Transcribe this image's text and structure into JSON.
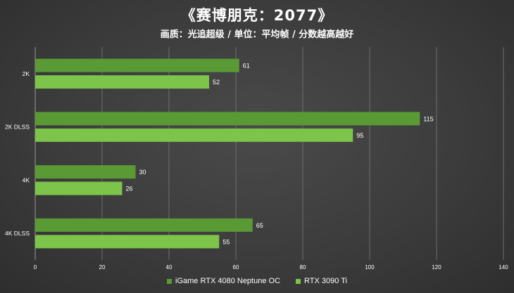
{
  "chart_data": {
    "type": "bar",
    "orientation": "horizontal",
    "title": "《赛博朋克：2077》",
    "subtitle": "画质：光追超级 / 单位：平均帧 / 分数越高越好",
    "categories": [
      "2K",
      "2K DLSS",
      "4K",
      "4K DLSS"
    ],
    "series": [
      {
        "name": "iGame RTX 4080 Neptune OC",
        "color": "#5a9a35",
        "values": [
          61,
          115,
          30,
          65
        ]
      },
      {
        "name": "RTX 3090 Ti",
        "color": "#7cc44a",
        "values": [
          52,
          95,
          26,
          55
        ]
      }
    ],
    "xlim": [
      0,
      140
    ],
    "xticks": [
      "0",
      "20",
      "40",
      "60",
      "80",
      "100",
      "120",
      "140"
    ],
    "grid": true,
    "legend_position": "bottom"
  }
}
